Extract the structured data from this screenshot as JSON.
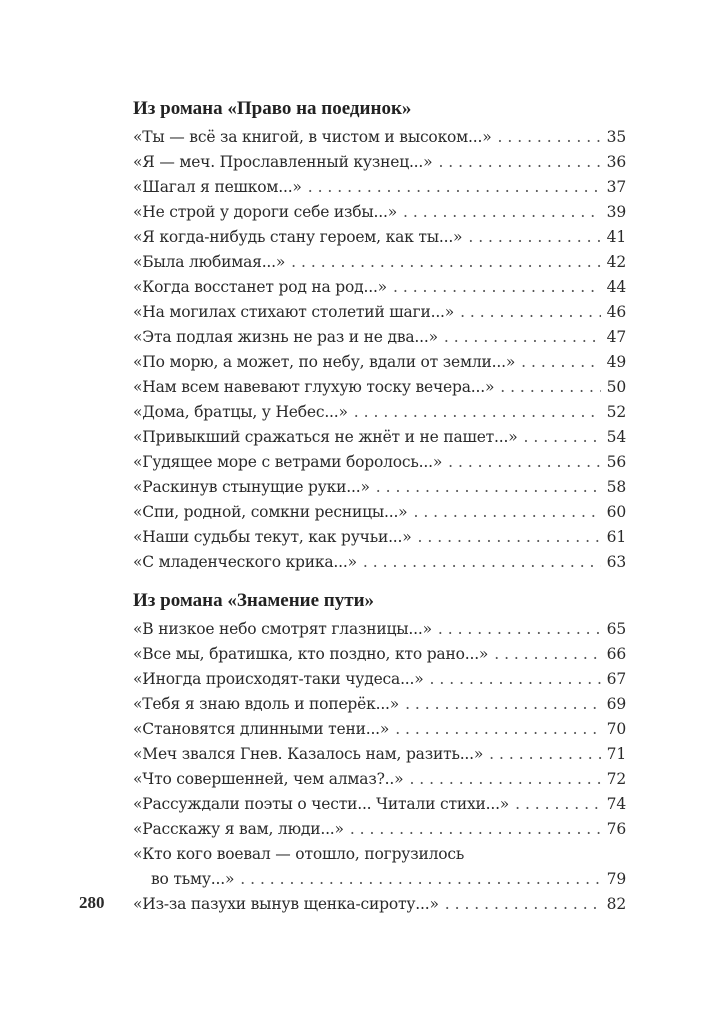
{
  "page_number": "280",
  "sections": [
    {
      "title": "Из романа «Право на поединок»",
      "entries": [
        {
          "title": "«Ты — всё за книгой, в чистом и высоком...»",
          "page": "35"
        },
        {
          "title": "«Я — меч. Прославленный кузнец...»",
          "page": "36"
        },
        {
          "title": "«Шагал я пешком...»",
          "page": "37"
        },
        {
          "title": "«Не строй у дороги себе избы...»",
          "page": "39"
        },
        {
          "title": "«Я когда-нибудь стану героем, как ты...»",
          "page": "41"
        },
        {
          "title": "«Была любимая...»",
          "page": "42"
        },
        {
          "title": "«Когда восстанет род на род...»",
          "page": "44"
        },
        {
          "title": "«На могилах стихают столетий шаги...»",
          "page": "46"
        },
        {
          "title": "«Эта подлая жизнь не раз и не два...»",
          "page": "47"
        },
        {
          "title": "«По морю, а может, по небу, вдали от земли...»",
          "page": "49"
        },
        {
          "title": "«Нам всем навевают глухую тоску вечера...»",
          "page": "50"
        },
        {
          "title": "«Дома, братцы, у Небес...»",
          "page": "52"
        },
        {
          "title": "«Привыкший сражаться не жнёт и не пашет...»",
          "page": "54"
        },
        {
          "title": "«Гудящее море с ветрами боролось...»",
          "page": "56"
        },
        {
          "title": "«Раскинув стынущие руки...»",
          "page": "58"
        },
        {
          "title": "«Спи, родной, сомкни ресницы...»",
          "page": "60"
        },
        {
          "title": "«Наши судьбы текут, как ручьи...»",
          "page": "61"
        },
        {
          "title": "«С младенческого крика...»",
          "page": "63"
        }
      ]
    },
    {
      "title": "Из романа «Знамение пути»",
      "entries": [
        {
          "title": "«В низкое небо смотрят глазницы...»",
          "page": "65"
        },
        {
          "title": "«Все мы, братишка, кто поздно, кто рано...»",
          "page": "66"
        },
        {
          "title": "«Иногда происходят-таки чудеса...»",
          "page": "67"
        },
        {
          "title": "«Тебя я знаю вдоль и поперёк...»",
          "page": "69"
        },
        {
          "title": "«Становятся длинными тени...»",
          "page": "70"
        },
        {
          "title": "«Меч звался Гнев. Казалось нам, разить...»",
          "page": "71"
        },
        {
          "title": "«Что совершенней, чем алмаз?..»",
          "page": "72"
        },
        {
          "title": "«Рассуждали поэты о чести... Читали стихи...»",
          "page": "74"
        },
        {
          "title": "«Расскажу я вам, люди...»",
          "page": "76"
        },
        {
          "title": "«Кто кого воевал — отошло, погрузилось",
          "continuation": "во тьму...»",
          "page": "79"
        },
        {
          "title": "«Из-за пазухи вынув щенка-сироту...»",
          "page": "82"
        }
      ]
    }
  ]
}
